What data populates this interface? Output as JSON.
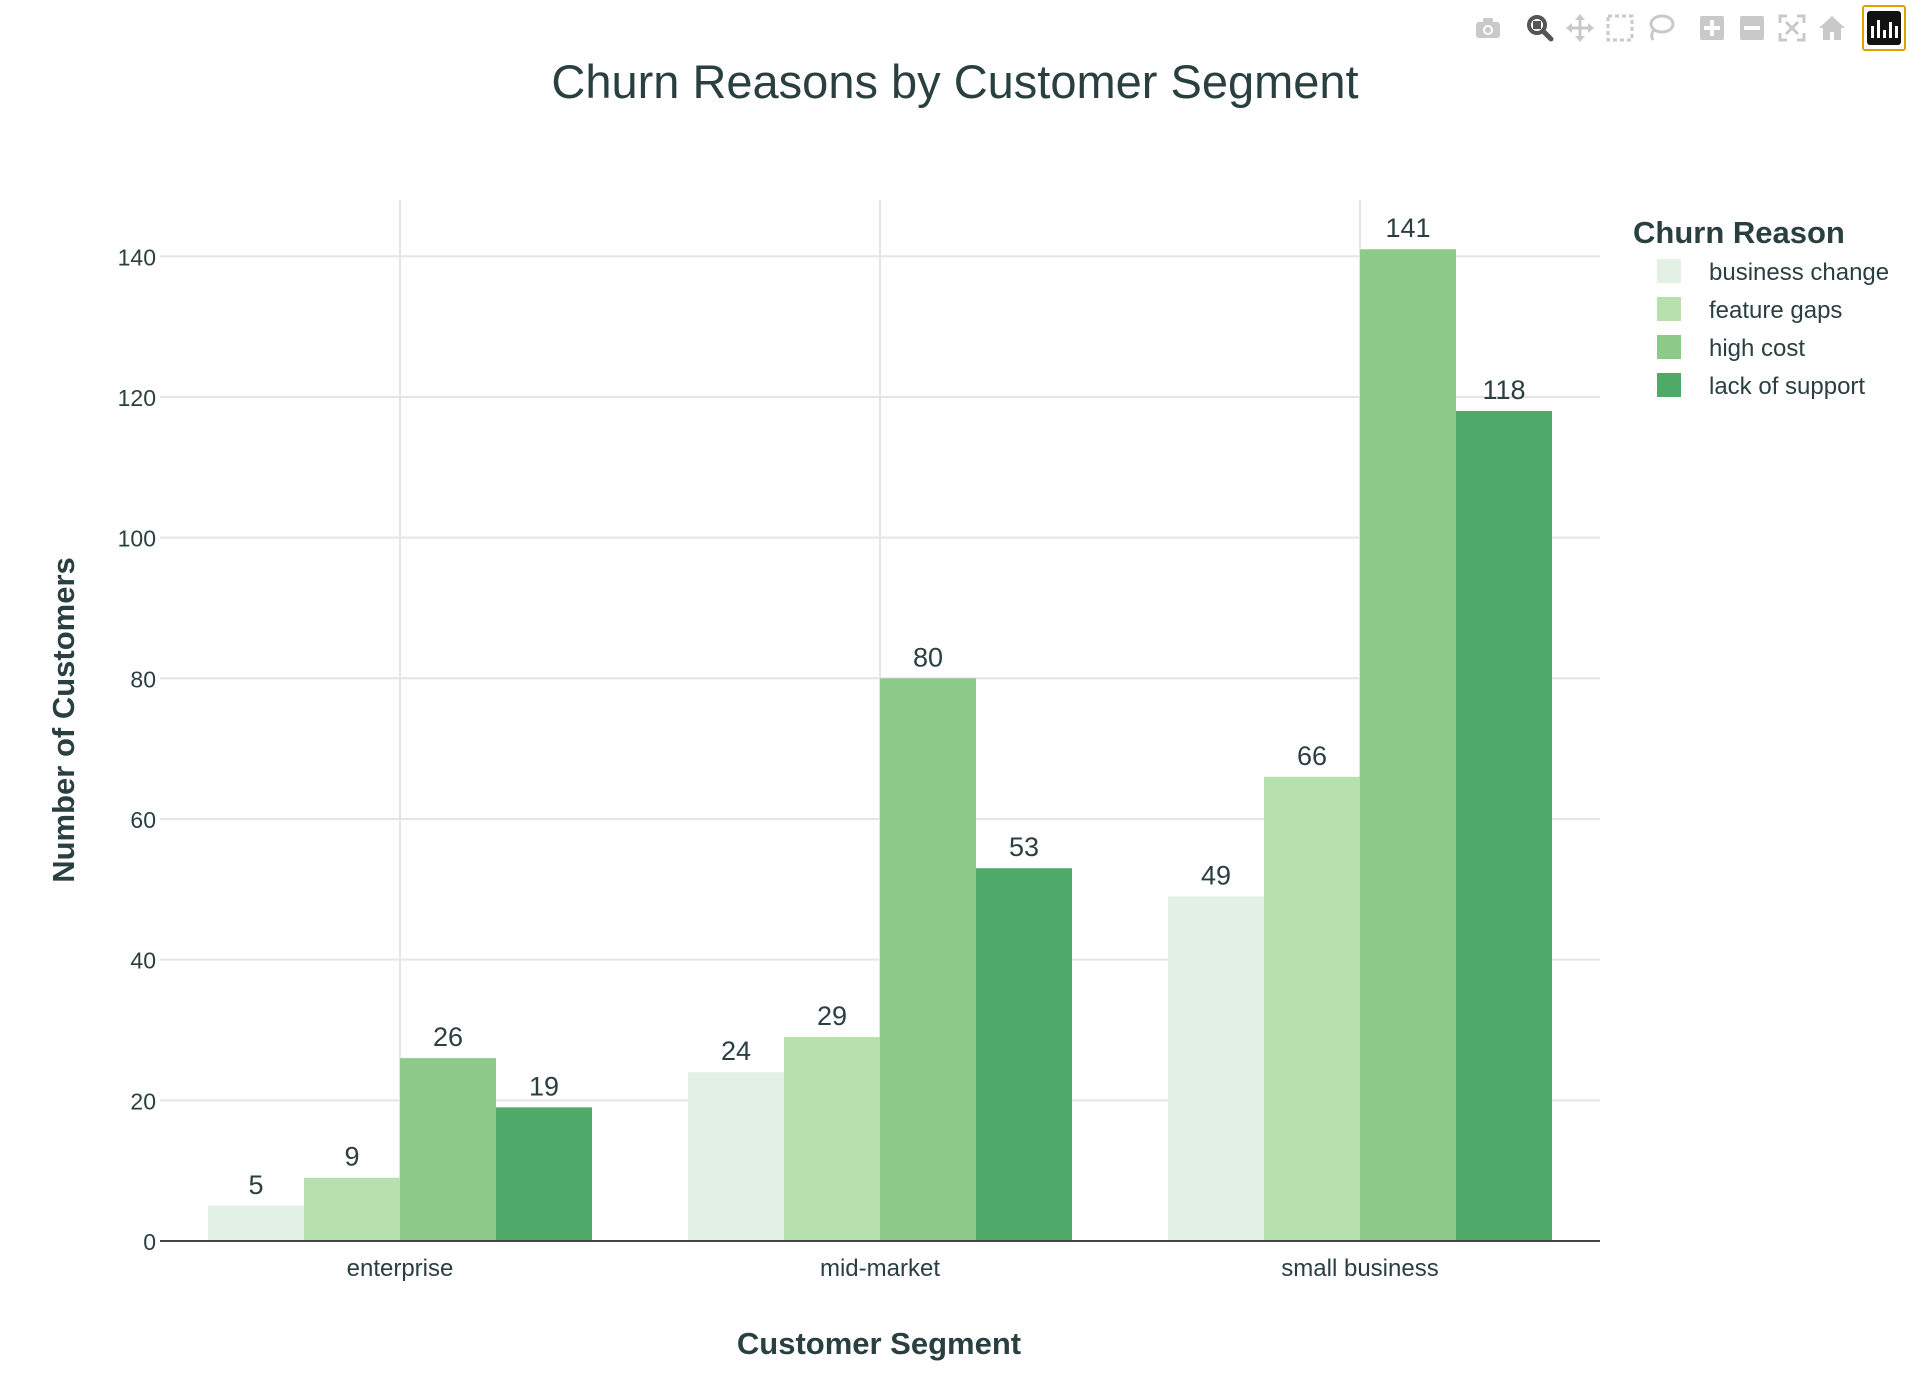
{
  "toolbar": {
    "buttons": [
      {
        "name": "camera-icon",
        "title": "Download plot as a png"
      },
      {
        "name": "zoom-icon",
        "title": "Zoom"
      },
      {
        "name": "pan-icon",
        "title": "Pan"
      },
      {
        "name": "box-select-icon",
        "title": "Box Select"
      },
      {
        "name": "lasso-select-icon",
        "title": "Lasso Select"
      },
      {
        "name": "zoom-in-icon",
        "title": "Zoom in"
      },
      {
        "name": "zoom-out-icon",
        "title": "Zoom out"
      },
      {
        "name": "autoscale-icon",
        "title": "Autoscale"
      },
      {
        "name": "home-icon",
        "title": "Reset axes"
      }
    ],
    "active": "zoom-icon",
    "logo": "plotly-logo-icon"
  },
  "chart_data": {
    "type": "bar",
    "title": "Churn Reasons by Customer Segment",
    "xlabel": "Customer Segment",
    "ylabel": "Number of Customers",
    "categories": [
      "enterprise",
      "mid-market",
      "small business"
    ],
    "series": [
      {
        "name": "business change",
        "values": [
          5,
          24,
          49
        ],
        "color": "#e2f0e5"
      },
      {
        "name": "feature gaps",
        "values": [
          9,
          29,
          66
        ],
        "color": "#b6e0ae"
      },
      {
        "name": "high cost",
        "values": [
          26,
          80,
          141
        ],
        "color": "#8dca89"
      },
      {
        "name": "lack of support",
        "values": [
          19,
          53,
          118
        ],
        "color": "#4fa969"
      }
    ],
    "ylim": [
      0,
      148
    ],
    "yticks": [
      0,
      20,
      40,
      60,
      80,
      100,
      120,
      140
    ],
    "grid": true,
    "legend": {
      "title": "Churn Reason",
      "placement": "top-right"
    },
    "colors": {
      "text": "#2a3f3f",
      "grid": "#e5e5e5",
      "axis": "#444444"
    }
  }
}
